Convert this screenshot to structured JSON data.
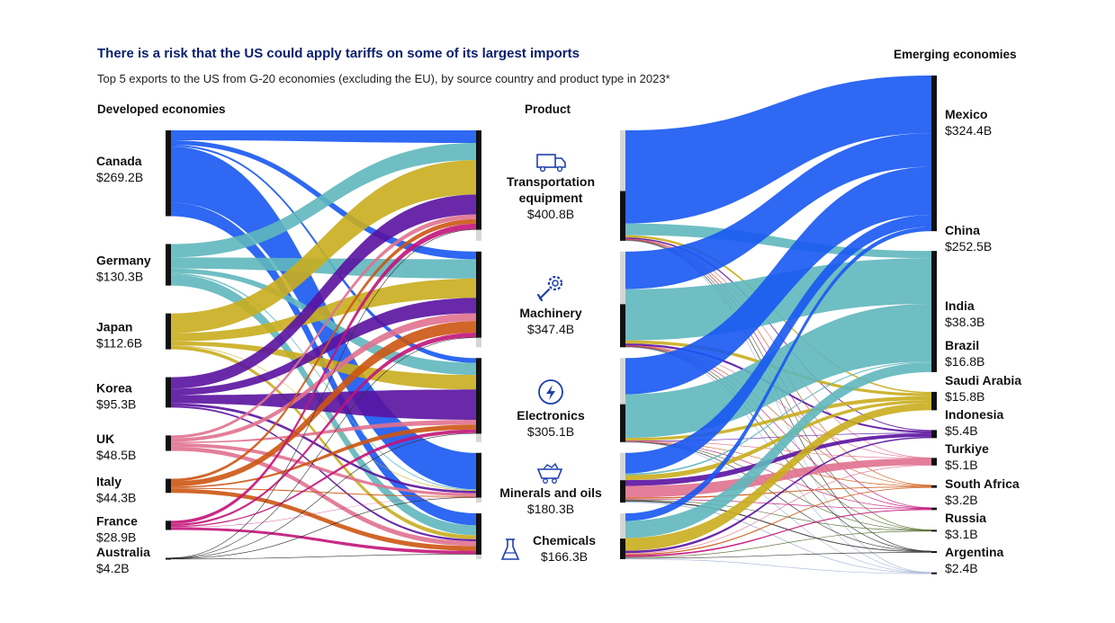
{
  "title": "There is a risk that the US could apply tariffs on some of its largest imports",
  "subtitle": "Top 5 exports to the US from G-20 economies (excluding the EU), by source country and product type in 2023*",
  "headers": {
    "developed": "Developed economies",
    "product": "Product",
    "emerging": "Emerging economies"
  },
  "colors": {
    "Canada": "#1758f2",
    "Germany": "#5fb7bd",
    "Japan": "#c9ad1e",
    "Korea": "#5a12a0",
    "UK": "#e0718f",
    "Italy": "#cc5512",
    "France": "#c21479",
    "Australia": "#333333",
    "Mexico": "#1758f2",
    "China": "#5fb7bd",
    "India": "#c9ad1e",
    "Brazil": "#5a12a0",
    "Saudi Arabia": "#e0718f",
    "Indonesia": "#cc5512",
    "Turkiye": "#c21479",
    "South Africa": "#556b2f",
    "Russia": "#333333",
    "Argentina": "#a7b8d8",
    "node_bar": "#111111",
    "product_track": "#d6d6d6"
  },
  "chart_data": {
    "type": "sankey",
    "units": "USD billions",
    "developed": [
      {
        "name": "Canada",
        "value_label": "$269.2B",
        "value": 269.2
      },
      {
        "name": "Germany",
        "value_label": "$130.3B",
        "value": 130.3
      },
      {
        "name": "Japan",
        "value_label": "$112.6B",
        "value": 112.6
      },
      {
        "name": "Korea",
        "value_label": "$95.3B",
        "value": 95.3
      },
      {
        "name": "UK",
        "value_label": "$48.5B",
        "value": 48.5
      },
      {
        "name": "Italy",
        "value_label": "$44.3B",
        "value": 44.3
      },
      {
        "name": "France",
        "value_label": "$28.9B",
        "value": 28.9
      },
      {
        "name": "Australia",
        "value_label": "$4.2B",
        "value": 4.2
      }
    ],
    "products": [
      {
        "name": "Transportation equipment",
        "lines": [
          "Transportation",
          "equipment"
        ],
        "value_label": "$400.8B",
        "value": 400.8,
        "icon": "truck-icon"
      },
      {
        "name": "Machinery",
        "lines": [
          "Machinery"
        ],
        "value_label": "$347.4B",
        "value": 347.4,
        "icon": "gear-wrench-icon"
      },
      {
        "name": "Electronics",
        "lines": [
          "Electronics"
        ],
        "value_label": "$305.1B",
        "value": 305.1,
        "icon": "lightning-icon"
      },
      {
        "name": "Minerals and oils",
        "lines": [
          "Minerals and oils"
        ],
        "value_label": "$180.3B",
        "value": 180.3,
        "icon": "mining-cart-icon"
      },
      {
        "name": "Chemicals",
        "lines": [
          "Chemicals"
        ],
        "value_label": "$166.3B",
        "value": 166.3,
        "icon": "flask-icon"
      }
    ],
    "emerging": [
      {
        "name": "Mexico",
        "value_label": "$324.4B",
        "value": 324.4
      },
      {
        "name": "China",
        "value_label": "$252.5B",
        "value": 252.5
      },
      {
        "name": "India",
        "value_label": "$38.3B",
        "value": 38.3
      },
      {
        "name": "Brazil",
        "value_label": "$16.8B",
        "value": 16.8
      },
      {
        "name": "Saudi Arabia",
        "value_label": "$15.8B",
        "value": 15.8
      },
      {
        "name": "Indonesia",
        "value_label": "$5.4B",
        "value": 5.4
      },
      {
        "name": "Turkiye",
        "value_label": "$5.1B",
        "value": 5.1
      },
      {
        "name": "South Africa",
        "value_label": "$3.2B",
        "value": 3.2
      },
      {
        "name": "Russia",
        "value_label": "$3.1B",
        "value": 3.1
      },
      {
        "name": "Argentina",
        "value_label": "$2.4B",
        "value": 2.4
      }
    ],
    "flows_developed": [
      {
        "source": "Canada",
        "target": "Transportation equipment",
        "value": 22
      },
      {
        "source": "Canada",
        "target": "Machinery",
        "value": 10
      },
      {
        "source": "Canada",
        "target": "Electronics",
        "value": 4
      },
      {
        "source": "Canada",
        "target": "Minerals and oils",
        "value": 125
      },
      {
        "source": "Canada",
        "target": "Chemicals",
        "value": 30
      },
      {
        "source": "Germany",
        "target": "Transportation equipment",
        "value": 30
      },
      {
        "source": "Germany",
        "target": "Machinery",
        "value": 25
      },
      {
        "source": "Germany",
        "target": "Electronics",
        "value": 10
      },
      {
        "source": "Germany",
        "target": "Minerals and oils",
        "value": 3
      },
      {
        "source": "Germany",
        "target": "Chemicals",
        "value": 25
      },
      {
        "source": "Japan",
        "target": "Transportation equipment",
        "value": 60
      },
      {
        "source": "Japan",
        "target": "Machinery",
        "value": 25
      },
      {
        "source": "Japan",
        "target": "Electronics",
        "value": 12
      },
      {
        "source": "Japan",
        "target": "Minerals and oils",
        "value": 2
      },
      {
        "source": "Japan",
        "target": "Chemicals",
        "value": 10
      },
      {
        "source": "Korea",
        "target": "Transportation equipment",
        "value": 35
      },
      {
        "source": "Korea",
        "target": "Machinery",
        "value": 20
      },
      {
        "source": "Korea",
        "target": "Electronics",
        "value": 25
      },
      {
        "source": "Korea",
        "target": "Minerals and oils",
        "value": 8
      },
      {
        "source": "Korea",
        "target": "Chemicals",
        "value": 5
      },
      {
        "source": "UK",
        "target": "Transportation equipment",
        "value": 8
      },
      {
        "source": "UK",
        "target": "Machinery",
        "value": 10
      },
      {
        "source": "UK",
        "target": "Electronics",
        "value": 4
      },
      {
        "source": "UK",
        "target": "Minerals and oils",
        "value": 10
      },
      {
        "source": "UK",
        "target": "Chemicals",
        "value": 12
      },
      {
        "source": "Italy",
        "target": "Transportation equipment",
        "value": 8
      },
      {
        "source": "Italy",
        "target": "Machinery",
        "value": 15
      },
      {
        "source": "Italy",
        "target": "Electronics",
        "value": 4
      },
      {
        "source": "Italy",
        "target": "Minerals and oils",
        "value": 3
      },
      {
        "source": "Italy",
        "target": "Chemicals",
        "value": 12
      },
      {
        "source": "France",
        "target": "Transportation equipment",
        "value": 10
      },
      {
        "source": "France",
        "target": "Machinery",
        "value": 6
      },
      {
        "source": "France",
        "target": "Electronics",
        "value": 3
      },
      {
        "source": "France",
        "target": "Minerals and oils",
        "value": 1
      },
      {
        "source": "France",
        "target": "Chemicals",
        "value": 8
      },
      {
        "source": "Australia",
        "target": "Transportation equipment",
        "value": 0.5
      },
      {
        "source": "Australia",
        "target": "Machinery",
        "value": 0.5
      },
      {
        "source": "Australia",
        "target": "Electronics",
        "value": 0.5
      },
      {
        "source": "Australia",
        "target": "Minerals and oils",
        "value": 1.2
      },
      {
        "source": "Australia",
        "target": "Chemicals",
        "value": 1.5
      }
    ],
    "flows_emerging": [
      {
        "source": "Transportation equipment",
        "target": "Mexico",
        "value": 120
      },
      {
        "source": "Transportation equipment",
        "target": "China",
        "value": 15
      },
      {
        "source": "Transportation equipment",
        "target": "India",
        "value": 3
      },
      {
        "source": "Transportation equipment",
        "target": "Brazil",
        "value": 2
      },
      {
        "source": "Transportation equipment",
        "target": "Saudi Arabia",
        "value": 0.3
      },
      {
        "source": "Transportation equipment",
        "target": "Indonesia",
        "value": 0.4
      },
      {
        "source": "Transportation equipment",
        "target": "Turkiye",
        "value": 0.6
      },
      {
        "source": "Transportation equipment",
        "target": "South Africa",
        "value": 0.5
      },
      {
        "source": "Transportation equipment",
        "target": "Russia",
        "value": 0.2
      },
      {
        "source": "Transportation equipment",
        "target": "Argentina",
        "value": 0.2
      },
      {
        "source": "Machinery",
        "target": "Mexico",
        "value": 70
      },
      {
        "source": "Machinery",
        "target": "China",
        "value": 95
      },
      {
        "source": "Machinery",
        "target": "India",
        "value": 6
      },
      {
        "source": "Machinery",
        "target": "Brazil",
        "value": 4
      },
      {
        "source": "Machinery",
        "target": "Saudi Arabia",
        "value": 0.3
      },
      {
        "source": "Machinery",
        "target": "Indonesia",
        "value": 0.6
      },
      {
        "source": "Machinery",
        "target": "Turkiye",
        "value": 1
      },
      {
        "source": "Machinery",
        "target": "South Africa",
        "value": 0.4
      },
      {
        "source": "Machinery",
        "target": "Russia",
        "value": 0.3
      },
      {
        "source": "Machinery",
        "target": "Argentina",
        "value": 0.3
      },
      {
        "source": "Electronics",
        "target": "Mexico",
        "value": 100
      },
      {
        "source": "Electronics",
        "target": "China",
        "value": 120
      },
      {
        "source": "Electronics",
        "target": "India",
        "value": 8
      },
      {
        "source": "Electronics",
        "target": "Brazil",
        "value": 1
      },
      {
        "source": "Electronics",
        "target": "Saudi Arabia",
        "value": 0.2
      },
      {
        "source": "Electronics",
        "target": "Indonesia",
        "value": 1.5
      },
      {
        "source": "Electronics",
        "target": "Turkiye",
        "value": 0.5
      },
      {
        "source": "Electronics",
        "target": "South Africa",
        "value": 0.2
      },
      {
        "source": "Electronics",
        "target": "Russia",
        "value": 0.1
      },
      {
        "source": "Electronics",
        "target": "Argentina",
        "value": 0.1
      },
      {
        "source": "Minerals and oils",
        "target": "Mexico",
        "value": 25
      },
      {
        "source": "Minerals and oils",
        "target": "China",
        "value": 2
      },
      {
        "source": "Minerals and oils",
        "target": "India",
        "value": 6
      },
      {
        "source": "Minerals and oils",
        "target": "Brazil",
        "value": 7
      },
      {
        "source": "Minerals and oils",
        "target": "Saudi Arabia",
        "value": 14
      },
      {
        "source": "Minerals and oils",
        "target": "Indonesia",
        "value": 1.5
      },
      {
        "source": "Minerals and oils",
        "target": "Turkiye",
        "value": 1
      },
      {
        "source": "Minerals and oils",
        "target": "South Africa",
        "value": 1
      },
      {
        "source": "Minerals and oils",
        "target": "Russia",
        "value": 1.5
      },
      {
        "source": "Minerals and oils",
        "target": "Argentina",
        "value": 1.2
      },
      {
        "source": "Chemicals",
        "target": "Mexico",
        "value": 9
      },
      {
        "source": "Chemicals",
        "target": "China",
        "value": 20
      },
      {
        "source": "Chemicals",
        "target": "India",
        "value": 15
      },
      {
        "source": "Chemicals",
        "target": "Brazil",
        "value": 2.8
      },
      {
        "source": "Chemicals",
        "target": "Saudi Arabia",
        "value": 1
      },
      {
        "source": "Chemicals",
        "target": "Indonesia",
        "value": 1.4
      },
      {
        "source": "Chemicals",
        "target": "Turkiye",
        "value": 2
      },
      {
        "source": "Chemicals",
        "target": "South Africa",
        "value": 1.1
      },
      {
        "source": "Chemicals",
        "target": "Russia",
        "value": 1
      },
      {
        "source": "Chemicals",
        "target": "Argentina",
        "value": 0.6
      }
    ]
  }
}
